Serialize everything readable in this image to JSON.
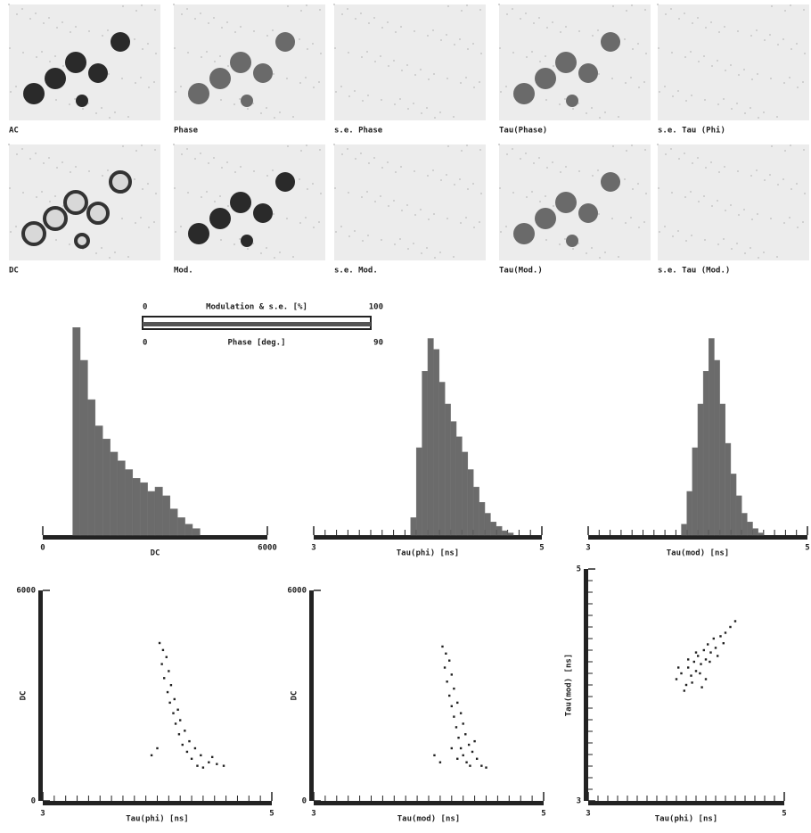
{
  "images": [
    {
      "label": "AC"
    },
    {
      "label": "Phase"
    },
    {
      "label": "s.e. Phase"
    },
    {
      "label": "Tau(Phase)"
    },
    {
      "label": "s.e. Tau (Phi)"
    },
    {
      "label": "DC"
    },
    {
      "label": "Mod."
    },
    {
      "label": "s.e. Mod."
    },
    {
      "label": "Tau(Mod.)"
    },
    {
      "label": "s.e. Tau (Mod.)"
    }
  ],
  "scale_bar": {
    "top_label": "Modulation & s.e. [%]",
    "top_min": "0",
    "top_max": "100",
    "bottom_label": "Phase [deg.]",
    "bottom_min": "0",
    "bottom_max": "90"
  },
  "chart_data": [
    {
      "type": "histogram",
      "xlabel": "DC",
      "xlim": [
        0,
        6000
      ],
      "xticks": [
        0,
        6000
      ],
      "ylim": [
        0,
        100
      ],
      "bins": [
        800,
        1000,
        1200,
        1400,
        1600,
        1800,
        2000,
        2200,
        2400,
        2600,
        2800,
        3000,
        3200,
        3400,
        3600,
        3800,
        4000,
        4200
      ],
      "counts": [
        95,
        80,
        62,
        50,
        44,
        38,
        34,
        30,
        26,
        24,
        20,
        22,
        18,
        12,
        8,
        5,
        3
      ]
    },
    {
      "type": "histogram",
      "xlabel": "Tau(phi) [ns]",
      "xlim": [
        3,
        5
      ],
      "xticks": [
        3,
        5
      ],
      "ylim": [
        0,
        100
      ],
      "minor_xticks": [
        3.1,
        3.2,
        3.3,
        3.4,
        3.5,
        3.6,
        3.7,
        3.8,
        3.9,
        4.0,
        4.1,
        4.2,
        4.3,
        4.4,
        4.5,
        4.6,
        4.7,
        4.8,
        4.9
      ],
      "bins": [
        3.85,
        3.9,
        3.95,
        4.0,
        4.05,
        4.1,
        4.15,
        4.2,
        4.25,
        4.3,
        4.35,
        4.4,
        4.45,
        4.5,
        4.55,
        4.6,
        4.65,
        4.7,
        4.75
      ],
      "counts": [
        8,
        40,
        75,
        90,
        85,
        70,
        60,
        52,
        45,
        38,
        30,
        22,
        15,
        10,
        6,
        4,
        2,
        1
      ]
    },
    {
      "type": "histogram",
      "xlabel": "Tau(mod) [ns]",
      "xlim": [
        3,
        5
      ],
      "xticks": [
        3,
        5
      ],
      "ylim": [
        0,
        100
      ],
      "minor_xticks": [
        3.1,
        3.2,
        3.3,
        3.4,
        3.5,
        3.6,
        3.7,
        3.8,
        3.9,
        4.0,
        4.1,
        4.2,
        4.3,
        4.4,
        4.5,
        4.6,
        4.7,
        4.8,
        4.9
      ],
      "bins": [
        3.85,
        3.9,
        3.95,
        4.0,
        4.05,
        4.1,
        4.15,
        4.2,
        4.25,
        4.3,
        4.35,
        4.4,
        4.45,
        4.5,
        4.55,
        4.6
      ],
      "counts": [
        5,
        20,
        40,
        60,
        75,
        90,
        80,
        60,
        42,
        28,
        18,
        10,
        6,
        3,
        1
      ]
    },
    {
      "type": "scatter",
      "xlabel": "Tau(phi) [ns]",
      "ylabel": "DC",
      "xlim": [
        3,
        5
      ],
      "ylim": [
        0,
        6000
      ],
      "xticks": [
        3,
        5
      ],
      "yticks": [
        0,
        6000
      ],
      "minor_xticks": [
        3.1,
        3.2,
        3.3,
        3.4,
        3.5,
        3.6,
        3.7,
        3.8,
        3.9,
        4.0,
        4.1,
        4.2,
        4.3,
        4.4,
        4.5,
        4.6,
        4.7,
        4.8,
        4.9
      ],
      "x": [
        4.02,
        4.05,
        4.08,
        4.04,
        4.1,
        4.06,
        4.12,
        4.09,
        4.15,
        4.11,
        4.18,
        4.14,
        4.2,
        4.16,
        4.24,
        4.19,
        4.28,
        4.22,
        4.33,
        4.26,
        4.38,
        4.3,
        4.45,
        4.35,
        4.52,
        4.4,
        4.58,
        3.95,
        4.0,
        4.48
      ],
      "y": [
        4500,
        4300,
        4100,
        3900,
        3700,
        3500,
        3300,
        3100,
        2900,
        2800,
        2600,
        2500,
        2300,
        2200,
        2000,
        1900,
        1700,
        1600,
        1500,
        1400,
        1300,
        1200,
        1100,
        1000,
        1050,
        950,
        1000,
        1300,
        1500,
        1250
      ]
    },
    {
      "type": "scatter",
      "xlabel": "Tau(mod) [ns]",
      "ylabel": "DC",
      "xlim": [
        3,
        5
      ],
      "ylim": [
        0,
        6000
      ],
      "xticks": [
        3,
        5
      ],
      "yticks": [
        0,
        6000
      ],
      "minor_xticks": [
        3.1,
        3.2,
        3.3,
        3.4,
        3.5,
        3.6,
        3.7,
        3.8,
        3.9,
        4.0,
        4.1,
        4.2,
        4.3,
        4.4,
        4.5,
        4.6,
        4.7,
        4.8,
        4.9
      ],
      "x": [
        4.12,
        4.15,
        4.18,
        4.14,
        4.2,
        4.16,
        4.22,
        4.18,
        4.25,
        4.2,
        4.28,
        4.22,
        4.3,
        4.24,
        4.32,
        4.26,
        4.35,
        4.28,
        4.38,
        4.3,
        4.42,
        4.33,
        4.46,
        4.36,
        4.5,
        4.2,
        4.25,
        4.05,
        4.1,
        4.4
      ],
      "y": [
        4400,
        4200,
        4000,
        3800,
        3600,
        3400,
        3200,
        3000,
        2800,
        2700,
        2500,
        2400,
        2200,
        2100,
        1900,
        1800,
        1600,
        1500,
        1400,
        1300,
        1200,
        1100,
        1000,
        1000,
        950,
        1500,
        1200,
        1300,
        1100,
        1700
      ]
    },
    {
      "type": "scatter",
      "xlabel": "Tau(phi) [ns]",
      "ylabel": "Tau(mod) [ns]",
      "xlim": [
        3,
        5
      ],
      "ylim": [
        3,
        5
      ],
      "xticks": [
        3,
        5
      ],
      "yticks": [
        3,
        5
      ],
      "minor_xticks": [
        3.1,
        3.2,
        3.3,
        3.4,
        3.5,
        3.6,
        3.7,
        3.8,
        3.9,
        4.0,
        4.1,
        4.2,
        4.3,
        4.4,
        4.5,
        4.6,
        4.7,
        4.8,
        4.9
      ],
      "minor_yticks": [
        3.1,
        3.2,
        3.3,
        3.4,
        3.5,
        3.6,
        3.7,
        3.8,
        3.9,
        4.0,
        4.1,
        4.2,
        4.3,
        4.4,
        4.5,
        4.6,
        4.7,
        4.8,
        4.9
      ],
      "x": [
        3.9,
        3.95,
        4.0,
        4.02,
        4.05,
        4.08,
        4.1,
        4.12,
        4.15,
        4.18,
        4.2,
        4.22,
        4.25,
        4.28,
        4.3,
        4.35,
        4.4,
        4.45,
        3.98,
        4.06,
        4.14,
        4.24,
        4.32,
        4.5,
        3.92,
        4.1,
        4.2,
        4.38,
        4.02,
        4.16
      ],
      "y": [
        4.05,
        4.1,
        4.0,
        4.15,
        4.08,
        4.2,
        4.12,
        4.25,
        4.18,
        4.3,
        4.22,
        4.35,
        4.28,
        4.4,
        4.32,
        4.42,
        4.45,
        4.5,
        3.95,
        4.02,
        4.1,
        4.2,
        4.25,
        4.55,
        4.15,
        4.28,
        4.05,
        4.36,
        4.22,
        3.98
      ]
    }
  ]
}
